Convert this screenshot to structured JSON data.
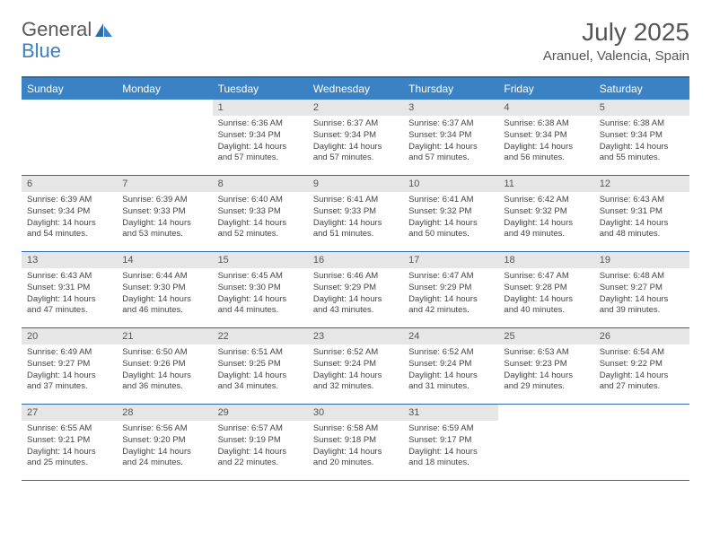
{
  "brand": {
    "part1": "General",
    "part2": "Blue"
  },
  "title": {
    "month": "July 2025",
    "location": "Aranuel, Valencia, Spain"
  },
  "dayNames": [
    "Sunday",
    "Monday",
    "Tuesday",
    "Wednesday",
    "Thursday",
    "Friday",
    "Saturday"
  ],
  "colors": {
    "headerBar": "#3b82c4",
    "topBorder": "#2d6aa8",
    "dayNumBg": "#e6e6e6",
    "text": "#555555"
  },
  "weeks": [
    [
      {
        "n": "",
        "sr": "",
        "ss": "",
        "dl": ""
      },
      {
        "n": "",
        "sr": "",
        "ss": "",
        "dl": ""
      },
      {
        "n": "1",
        "sr": "6:36 AM",
        "ss": "9:34 PM",
        "dl": "14 hours and 57 minutes."
      },
      {
        "n": "2",
        "sr": "6:37 AM",
        "ss": "9:34 PM",
        "dl": "14 hours and 57 minutes."
      },
      {
        "n": "3",
        "sr": "6:37 AM",
        "ss": "9:34 PM",
        "dl": "14 hours and 57 minutes."
      },
      {
        "n": "4",
        "sr": "6:38 AM",
        "ss": "9:34 PM",
        "dl": "14 hours and 56 minutes."
      },
      {
        "n": "5",
        "sr": "6:38 AM",
        "ss": "9:34 PM",
        "dl": "14 hours and 55 minutes."
      }
    ],
    [
      {
        "n": "6",
        "sr": "6:39 AM",
        "ss": "9:34 PM",
        "dl": "14 hours and 54 minutes."
      },
      {
        "n": "7",
        "sr": "6:39 AM",
        "ss": "9:33 PM",
        "dl": "14 hours and 53 minutes."
      },
      {
        "n": "8",
        "sr": "6:40 AM",
        "ss": "9:33 PM",
        "dl": "14 hours and 52 minutes."
      },
      {
        "n": "9",
        "sr": "6:41 AM",
        "ss": "9:33 PM",
        "dl": "14 hours and 51 minutes."
      },
      {
        "n": "10",
        "sr": "6:41 AM",
        "ss": "9:32 PM",
        "dl": "14 hours and 50 minutes."
      },
      {
        "n": "11",
        "sr": "6:42 AM",
        "ss": "9:32 PM",
        "dl": "14 hours and 49 minutes."
      },
      {
        "n": "12",
        "sr": "6:43 AM",
        "ss": "9:31 PM",
        "dl": "14 hours and 48 minutes."
      }
    ],
    [
      {
        "n": "13",
        "sr": "6:43 AM",
        "ss": "9:31 PM",
        "dl": "14 hours and 47 minutes."
      },
      {
        "n": "14",
        "sr": "6:44 AM",
        "ss": "9:30 PM",
        "dl": "14 hours and 46 minutes."
      },
      {
        "n": "15",
        "sr": "6:45 AM",
        "ss": "9:30 PM",
        "dl": "14 hours and 44 minutes."
      },
      {
        "n": "16",
        "sr": "6:46 AM",
        "ss": "9:29 PM",
        "dl": "14 hours and 43 minutes."
      },
      {
        "n": "17",
        "sr": "6:47 AM",
        "ss": "9:29 PM",
        "dl": "14 hours and 42 minutes."
      },
      {
        "n": "18",
        "sr": "6:47 AM",
        "ss": "9:28 PM",
        "dl": "14 hours and 40 minutes."
      },
      {
        "n": "19",
        "sr": "6:48 AM",
        "ss": "9:27 PM",
        "dl": "14 hours and 39 minutes."
      }
    ],
    [
      {
        "n": "20",
        "sr": "6:49 AM",
        "ss": "9:27 PM",
        "dl": "14 hours and 37 minutes."
      },
      {
        "n": "21",
        "sr": "6:50 AM",
        "ss": "9:26 PM",
        "dl": "14 hours and 36 minutes."
      },
      {
        "n": "22",
        "sr": "6:51 AM",
        "ss": "9:25 PM",
        "dl": "14 hours and 34 minutes."
      },
      {
        "n": "23",
        "sr": "6:52 AM",
        "ss": "9:24 PM",
        "dl": "14 hours and 32 minutes."
      },
      {
        "n": "24",
        "sr": "6:52 AM",
        "ss": "9:24 PM",
        "dl": "14 hours and 31 minutes."
      },
      {
        "n": "25",
        "sr": "6:53 AM",
        "ss": "9:23 PM",
        "dl": "14 hours and 29 minutes."
      },
      {
        "n": "26",
        "sr": "6:54 AM",
        "ss": "9:22 PM",
        "dl": "14 hours and 27 minutes."
      }
    ],
    [
      {
        "n": "27",
        "sr": "6:55 AM",
        "ss": "9:21 PM",
        "dl": "14 hours and 25 minutes."
      },
      {
        "n": "28",
        "sr": "6:56 AM",
        "ss": "9:20 PM",
        "dl": "14 hours and 24 minutes."
      },
      {
        "n": "29",
        "sr": "6:57 AM",
        "ss": "9:19 PM",
        "dl": "14 hours and 22 minutes."
      },
      {
        "n": "30",
        "sr": "6:58 AM",
        "ss": "9:18 PM",
        "dl": "14 hours and 20 minutes."
      },
      {
        "n": "31",
        "sr": "6:59 AM",
        "ss": "9:17 PM",
        "dl": "14 hours and 18 minutes."
      },
      {
        "n": "",
        "sr": "",
        "ss": "",
        "dl": ""
      },
      {
        "n": "",
        "sr": "",
        "ss": "",
        "dl": ""
      }
    ]
  ],
  "labels": {
    "sunrise": "Sunrise:",
    "sunset": "Sunset:",
    "daylight": "Daylight:"
  }
}
